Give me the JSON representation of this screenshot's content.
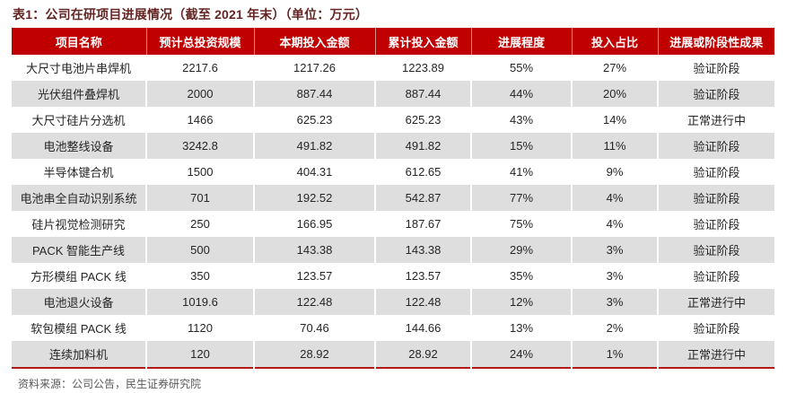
{
  "title": "表1：公司在研项目进展情况（截至 2021 年末）（单位：万元）",
  "footer": {
    "source_label": "资料来源：公司公告，民生证券研究院"
  },
  "colors": {
    "header_bg": "#c00000",
    "header_text": "#ffffff",
    "title_text": "#632523",
    "alt_row_bg": "#dedede",
    "bottom_rule": "#b01812",
    "source_text": "#595959"
  },
  "table": {
    "headers": [
      "项目名称",
      "预计总投资规模",
      "本期投入金额",
      "累计投入金额",
      "进展程度",
      "投入占比",
      "进展或阶段性成果"
    ],
    "rows": [
      [
        "大尺寸电池片串焊机",
        "2217.6",
        "1217.26",
        "1223.89",
        "55%",
        "27%",
        "验证阶段"
      ],
      [
        "光伏组件叠焊机",
        "2000",
        "887.44",
        "887.44",
        "44%",
        "20%",
        "验证阶段"
      ],
      [
        "大尺寸硅片分选机",
        "1466",
        "625.23",
        "625.23",
        "43%",
        "14%",
        "正常进行中"
      ],
      [
        "电池整线设备",
        "3242.8",
        "491.82",
        "491.82",
        "15%",
        "11%",
        "验证阶段"
      ],
      [
        "半导体键合机",
        "1500",
        "404.31",
        "612.65",
        "41%",
        "9%",
        "验证阶段"
      ],
      [
        "电池串全自动识别系统",
        "701",
        "192.52",
        "542.87",
        "77%",
        "4%",
        "验证阶段"
      ],
      [
        "硅片视觉检测研究",
        "250",
        "166.95",
        "187.67",
        "75%",
        "4%",
        "验证阶段"
      ],
      [
        "PACK 智能生产线",
        "500",
        "143.38",
        "143.38",
        "29%",
        "3%",
        "验证阶段"
      ],
      [
        "方形模组 PACK 线",
        "350",
        "123.57",
        "123.57",
        "35%",
        "3%",
        "验证阶段"
      ],
      [
        "电池退火设备",
        "1019.6",
        "122.48",
        "122.48",
        "12%",
        "3%",
        "正常进行中"
      ],
      [
        "软包模组 PACK 线",
        "1120",
        "70.46",
        "144.66",
        "13%",
        "2%",
        "验证阶段"
      ],
      [
        "连续加料机",
        "120",
        "28.92",
        "28.92",
        "24%",
        "1%",
        "正常进行中"
      ]
    ]
  }
}
